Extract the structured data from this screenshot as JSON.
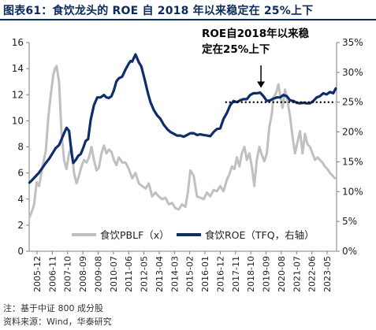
{
  "header": {
    "figure_label": "图表61：",
    "title": "食饮龙头的 ROE 自 2018 年以来稳定在 25%上下"
  },
  "footer": {
    "note": "注：基于中证 800 成分股",
    "source": "资料来源：Wind，华泰研究"
  },
  "chart_data": {
    "type": "line",
    "title": "",
    "x_tick_labels": [
      "2005-12",
      "2006-11",
      "2007-10",
      "2008-09",
      "2009-08",
      "2010-07",
      "2011-06",
      "2012-05",
      "2013-04",
      "2014-03",
      "2015-02",
      "2016-01",
      "2016-12",
      "2017-11",
      "2018-10",
      "2019-09",
      "2020-08",
      "2021-07",
      "2022-06",
      "2023-05"
    ],
    "left_axis": {
      "min": 0,
      "max": 16,
      "step": 2,
      "ticks": [
        "0",
        "2",
        "4",
        "6",
        "8",
        "10",
        "12",
        "14",
        "16"
      ]
    },
    "right_axis": {
      "min": 0,
      "max": 35,
      "step": 5,
      "ticks": [
        "0%",
        "5%",
        "10%",
        "15%",
        "20%",
        "25%",
        "30%",
        "35%"
      ]
    },
    "x_range": [
      2005.9,
      2024.4
    ],
    "grid": false,
    "legend_position": "bottom",
    "series": [
      {
        "name": "食饮PBLF（x）",
        "axis": "left",
        "color": "#c0c0c0",
        "x": [
          2005.92,
          2006.05,
          2006.2,
          2006.35,
          2006.5,
          2006.7,
          2006.9,
          2007.05,
          2007.2,
          2007.35,
          2007.45,
          2007.55,
          2007.7,
          2007.85,
          2008.0,
          2008.15,
          2008.3,
          2008.45,
          2008.6,
          2008.75,
          2008.9,
          2009.05,
          2009.2,
          2009.35,
          2009.5,
          2009.65,
          2009.8,
          2009.95,
          2010.1,
          2010.25,
          2010.4,
          2010.55,
          2010.7,
          2010.85,
          2011.0,
          2011.15,
          2011.3,
          2011.5,
          2011.7,
          2011.9,
          2012.1,
          2012.3,
          2012.5,
          2012.7,
          2012.9,
          2013.1,
          2013.3,
          2013.5,
          2013.7,
          2013.9,
          2014.1,
          2014.3,
          2014.5,
          2014.7,
          2014.9,
          2015.1,
          2015.3,
          2015.45,
          2015.6,
          2015.8,
          2016.0,
          2016.2,
          2016.4,
          2016.6,
          2016.8,
          2017.0,
          2017.2,
          2017.4,
          2017.6,
          2017.8,
          2017.95,
          2018.1,
          2018.25,
          2018.4,
          2018.55,
          2018.7,
          2018.85,
          2019.0,
          2019.15,
          2019.3,
          2019.45,
          2019.6,
          2019.75,
          2019.9,
          2020.05,
          2020.2,
          2020.35,
          2020.5,
          2020.6,
          2020.75,
          2020.9,
          2021.0,
          2021.15,
          2021.3,
          2021.45,
          2021.6,
          2021.75,
          2021.9,
          2022.05,
          2022.2,
          2022.35,
          2022.5,
          2022.65,
          2022.8,
          2022.95,
          2023.1,
          2023.25,
          2023.4,
          2023.55,
          2023.7,
          2023.85,
          2024.0,
          2024.15,
          2024.3
        ],
        "values": [
          2.6,
          3.0,
          3.6,
          5.3,
          5.0,
          6.5,
          7.7,
          10.2,
          12.0,
          13.5,
          14.0,
          14.2,
          13.0,
          9.0,
          7.0,
          6.3,
          7.5,
          8.0,
          6.0,
          5.2,
          5.8,
          6.5,
          7.0,
          6.8,
          7.2,
          8.0,
          7.0,
          6.2,
          6.4,
          7.5,
          8.1,
          7.5,
          7.8,
          7.6,
          7.0,
          6.6,
          7.2,
          6.8,
          6.8,
          6.3,
          5.6,
          6.0,
          5.2,
          5.0,
          4.8,
          5.2,
          4.2,
          4.5,
          4.2,
          4.0,
          4.1,
          3.6,
          3.7,
          3.3,
          3.2,
          3.6,
          3.4,
          4.5,
          6.2,
          5.8,
          4.2,
          4.1,
          4.0,
          4.5,
          4.2,
          4.7,
          4.6,
          5.0,
          4.6,
          5.5,
          5.9,
          6.5,
          6.3,
          7.2,
          6.5,
          7.5,
          8.0,
          7.0,
          7.5,
          6.5,
          5.0,
          7.0,
          8.0,
          7.4,
          6.9,
          7.5,
          9.5,
          10.5,
          11.8,
          12.1,
          12.8,
          12.0,
          11.0,
          12.4,
          11.5,
          10.3,
          8.8,
          7.5,
          8.4,
          9.2,
          7.5,
          9.0,
          8.2,
          8.0,
          7.5,
          7.0,
          7.2,
          7.0,
          6.8,
          6.5,
          6.3,
          6.0,
          5.8,
          5.6
        ]
      },
      {
        "name": "食饮ROE（TFQ，右轴）",
        "axis": "right",
        "color": "#0d2d6b",
        "x": [
          2005.92,
          2006.1,
          2006.3,
          2006.5,
          2006.7,
          2006.9,
          2007.1,
          2007.3,
          2007.5,
          2007.7,
          2007.85,
          2008.0,
          2008.15,
          2008.3,
          2008.45,
          2008.55,
          2008.7,
          2008.85,
          2009.0,
          2009.15,
          2009.3,
          2009.45,
          2009.6,
          2009.8,
          2010.0,
          2010.2,
          2010.4,
          2010.55,
          2010.7,
          2010.85,
          2011.0,
          2011.15,
          2011.3,
          2011.5,
          2011.7,
          2011.9,
          2012.0,
          2012.1,
          2012.3,
          2012.5,
          2012.65,
          2012.85,
          2013.05,
          2013.2,
          2013.4,
          2013.6,
          2013.8,
          2014.0,
          2014.2,
          2014.4,
          2014.6,
          2014.8,
          2015.0,
          2015.2,
          2015.4,
          2015.6,
          2015.8,
          2016.0,
          2016.2,
          2016.4,
          2016.6,
          2016.8,
          2017.0,
          2017.2,
          2017.4,
          2017.6,
          2017.8,
          2018.0,
          2018.2,
          2018.4,
          2018.6,
          2018.8,
          2019.0,
          2019.2,
          2019.4,
          2019.6,
          2019.8,
          2020.0,
          2020.2,
          2020.4,
          2020.6,
          2020.8,
          2021.0,
          2021.2,
          2021.4,
          2021.6,
          2021.8,
          2022.0,
          2022.2,
          2022.4,
          2022.6,
          2022.8,
          2023.0,
          2023.2,
          2023.4,
          2023.6,
          2023.8,
          2024.0,
          2024.2,
          2024.35
        ],
        "values": [
          11.5,
          12.0,
          12.6,
          13.2,
          14.0,
          14.8,
          15.5,
          16.4,
          17.3,
          17.8,
          18.8,
          19.8,
          20.7,
          20.2,
          16.5,
          14.8,
          15.3,
          16.0,
          16.3,
          17.3,
          18.5,
          18.8,
          22.0,
          24.5,
          25.8,
          25.8,
          26.2,
          25.8,
          25.7,
          26.0,
          27.0,
          28.5,
          29.0,
          29.3,
          30.5,
          31.5,
          31.9,
          31.8,
          33.0,
          31.7,
          31.0,
          28.8,
          26.5,
          25.0,
          23.7,
          22.8,
          22.2,
          21.2,
          20.5,
          20.0,
          19.7,
          19.4,
          19.4,
          19.2,
          19.5,
          19.8,
          19.8,
          19.5,
          19.6,
          19.5,
          19.4,
          19.3,
          20.0,
          20.5,
          20.6,
          22.2,
          23.2,
          24.5,
          25.2,
          25.0,
          25.3,
          25.5,
          25.5,
          26.2,
          26.5,
          26.5,
          26.6,
          26.0,
          25.2,
          25.3,
          25.6,
          25.8,
          25.8,
          26.2,
          26.0,
          25.3,
          25.2,
          24.9,
          24.8,
          24.9,
          24.8,
          24.8,
          25.2,
          25.8,
          26.0,
          26.5,
          26.3,
          26.7,
          26.5,
          27.3
        ]
      }
    ],
    "reference_line": {
      "axis": "right",
      "value": 25,
      "from_x": 2017.7,
      "to_x": 2024.35,
      "style": "dotted"
    },
    "annotation": {
      "lines": [
        "ROE自2018年以来稳",
        "定在25%上下"
      ],
      "arrow_to_x": 2019.85,
      "arrow_to_y": 27.4
    },
    "legend": [
      "食饮PBLF（x）",
      "食饮ROE（TFQ，右轴）"
    ]
  }
}
